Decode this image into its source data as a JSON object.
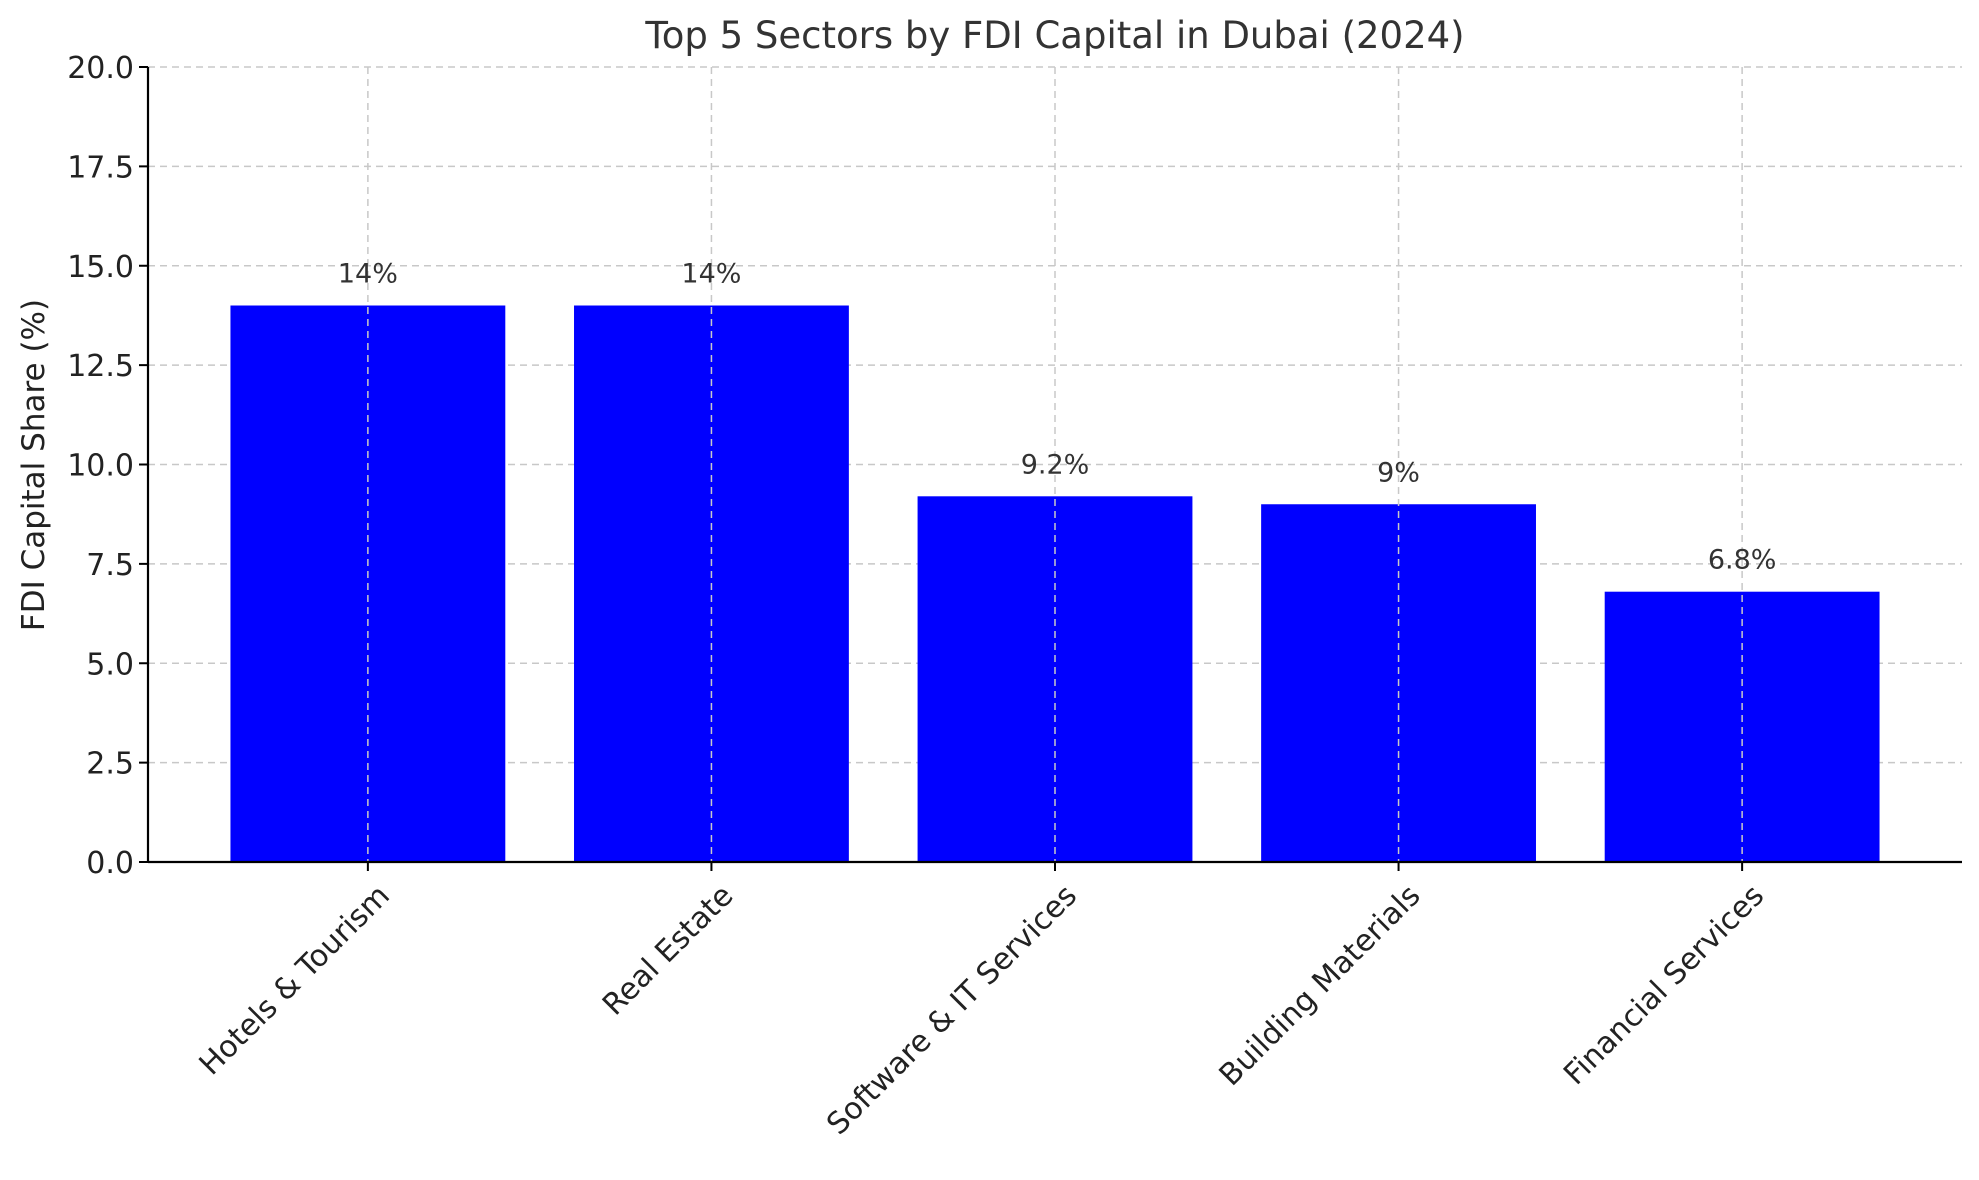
{
  "chart_data": {
    "type": "bar",
    "title": "Top 5 Sectors by FDI Capital in Dubai (2024)",
    "xlabel": "",
    "ylabel": "FDI Capital Share (%)",
    "categories": [
      "Hotels & Tourism",
      "Real Estate",
      "Software & IT Services",
      "Building Materials",
      "Financial Services"
    ],
    "values": [
      14,
      14,
      9.2,
      9,
      6.8
    ],
    "data_labels": [
      "14%",
      "14%",
      "9.2%",
      "9%",
      "6.8%"
    ],
    "ylim": [
      0,
      20
    ],
    "yticks": [
      0,
      2.5,
      5,
      7.5,
      10,
      12.5,
      15,
      17.5,
      20
    ],
    "ytick_labels": [
      "0.0",
      "2.5",
      "5.0",
      "7.5",
      "10.0",
      "12.5",
      "15.0",
      "17.5",
      "20.0"
    ],
    "bar_color": "#0000ff",
    "grid": true,
    "xtick_rotation": 45,
    "legend": "none"
  }
}
